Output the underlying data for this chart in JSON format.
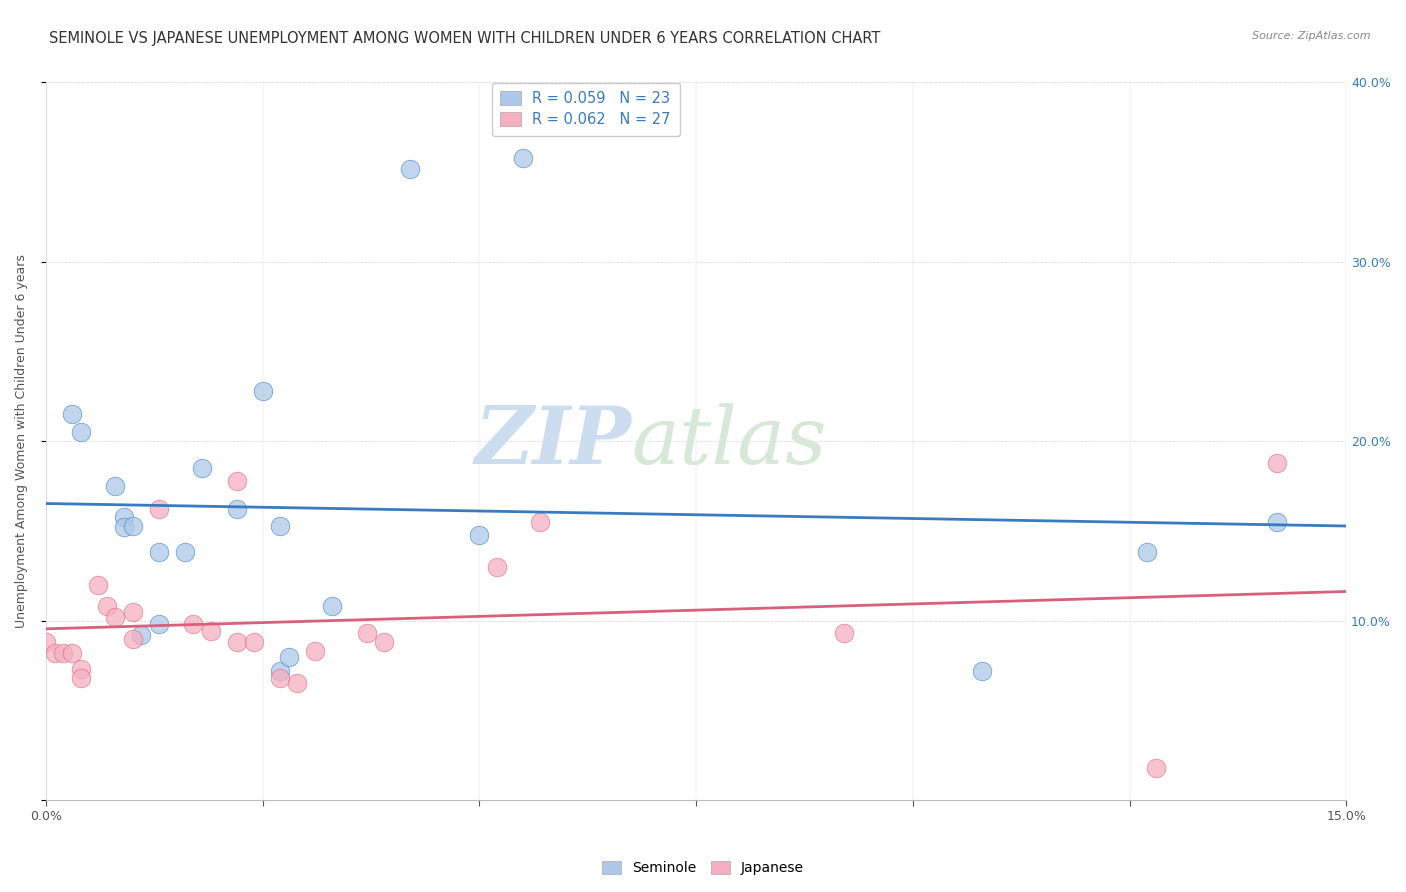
{
  "title": "SEMINOLE VS JAPANESE UNEMPLOYMENT AMONG WOMEN WITH CHILDREN UNDER 6 YEARS CORRELATION CHART",
  "source": "Source: ZipAtlas.com",
  "ylabel": "Unemployment Among Women with Children Under 6 years",
  "watermark_zip": "ZIP",
  "watermark_atlas": "atlas",
  "seminole_R": 0.059,
  "seminole_N": 23,
  "japanese_R": 0.062,
  "japanese_N": 27,
  "xlim": [
    0.0,
    0.15
  ],
  "ylim": [
    0.0,
    0.4
  ],
  "y_tick_labels_right": [
    "10.0%",
    "20.0%",
    "30.0%",
    "40.0%"
  ],
  "seminole_color": "#adc8e8",
  "japanese_color": "#f5afc0",
  "trendline_seminole_color": "#3a7bbf",
  "trendline_japanese_color": "#d9607a",
  "seminole_scatter": [
    [
      0.003,
      0.215
    ],
    [
      0.004,
      0.205
    ],
    [
      0.008,
      0.175
    ],
    [
      0.009,
      0.158
    ],
    [
      0.009,
      0.152
    ],
    [
      0.01,
      0.153
    ],
    [
      0.011,
      0.092
    ],
    [
      0.013,
      0.138
    ],
    [
      0.013,
      0.098
    ],
    [
      0.016,
      0.138
    ],
    [
      0.018,
      0.185
    ],
    [
      0.022,
      0.162
    ],
    [
      0.025,
      0.228
    ],
    [
      0.027,
      0.153
    ],
    [
      0.027,
      0.072
    ],
    [
      0.028,
      0.08
    ],
    [
      0.033,
      0.108
    ],
    [
      0.042,
      0.352
    ],
    [
      0.05,
      0.148
    ],
    [
      0.055,
      0.358
    ],
    [
      0.108,
      0.072
    ],
    [
      0.127,
      0.138
    ],
    [
      0.142,
      0.155
    ]
  ],
  "japanese_scatter": [
    [
      0.0,
      0.088
    ],
    [
      0.001,
      0.082
    ],
    [
      0.002,
      0.082
    ],
    [
      0.003,
      0.082
    ],
    [
      0.004,
      0.073
    ],
    [
      0.004,
      0.068
    ],
    [
      0.006,
      0.12
    ],
    [
      0.007,
      0.108
    ],
    [
      0.008,
      0.102
    ],
    [
      0.01,
      0.105
    ],
    [
      0.01,
      0.09
    ],
    [
      0.013,
      0.162
    ],
    [
      0.017,
      0.098
    ],
    [
      0.019,
      0.094
    ],
    [
      0.022,
      0.088
    ],
    [
      0.022,
      0.178
    ],
    [
      0.024,
      0.088
    ],
    [
      0.027,
      0.068
    ],
    [
      0.029,
      0.065
    ],
    [
      0.031,
      0.083
    ],
    [
      0.037,
      0.093
    ],
    [
      0.039,
      0.088
    ],
    [
      0.052,
      0.13
    ],
    [
      0.057,
      0.155
    ],
    [
      0.092,
      0.093
    ],
    [
      0.128,
      0.018
    ],
    [
      0.142,
      0.188
    ]
  ],
  "background_color": "#ffffff",
  "grid_color": "#dddddd",
  "title_fontsize": 10.5,
  "label_fontsize": 9,
  "tick_fontsize": 9
}
